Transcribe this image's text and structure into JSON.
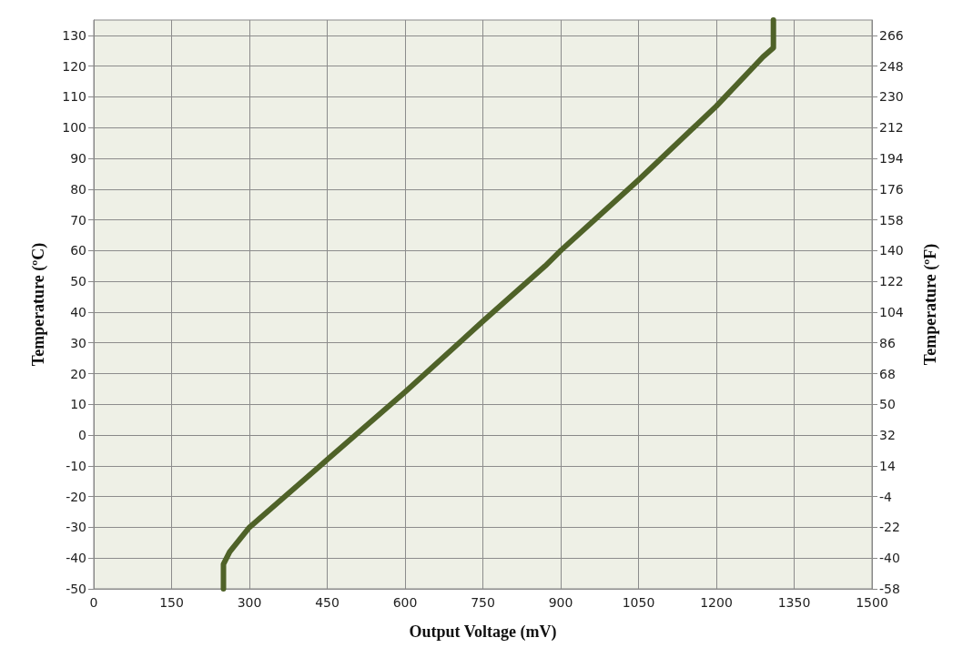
{
  "chart_data": {
    "type": "line",
    "xlabel": "Output Voltage (mV)",
    "ylabel": "Temperature (ºC)",
    "y2label": "Temperature (ºF)",
    "x": [
      250,
      250,
      262,
      300,
      450,
      600,
      750,
      870,
      900,
      1050,
      1200,
      1290,
      1310,
      1310,
      1310
    ],
    "series": [
      {
        "color": "#4f6228",
        "values": [
          -50,
          -42,
          -38,
          -30,
          -8,
          14,
          37,
          55,
          60,
          83,
          107,
          123,
          126,
          130,
          135
        ]
      }
    ],
    "xlim": [
      0,
      1500
    ],
    "xticks": [
      0,
      150,
      300,
      450,
      600,
      750,
      900,
      1050,
      1200,
      1350,
      1500
    ],
    "ylim": [
      -50,
      135
    ],
    "yticks": [
      -50,
      -40,
      -30,
      -20,
      -10,
      0,
      10,
      20,
      30,
      40,
      50,
      60,
      70,
      80,
      90,
      100,
      110,
      120,
      130
    ],
    "y2lim": [
      -58,
      275
    ],
    "y2ticks": [
      -58,
      -40,
      -22,
      -4,
      14,
      32,
      50,
      68,
      86,
      104,
      122,
      140,
      158,
      176,
      194,
      212,
      230,
      248,
      266
    ],
    "grid": true,
    "marker": "none",
    "line_style": "solid"
  }
}
